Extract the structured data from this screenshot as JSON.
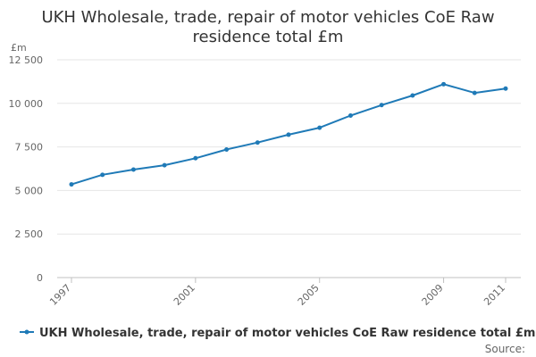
{
  "chart_data": {
    "type": "line",
    "title_lines": [
      "UKH Wholesale, trade, repair of motor vehicles CoE Raw",
      "residence total £m"
    ],
    "unit_label": "£m",
    "x": [
      1997,
      1998,
      1999,
      2000,
      2001,
      2002,
      2003,
      2004,
      2005,
      2006,
      2007,
      2008,
      2009,
      2010,
      2011
    ],
    "x_tick_labels": [
      "1997",
      "2001",
      "2005",
      "2009",
      "2011"
    ],
    "y_tick_labels": [
      "0",
      "2 500",
      "5 000",
      "7 500",
      "10 000",
      "12 500"
    ],
    "ylim": [
      0,
      12500
    ],
    "series": [
      {
        "name": "UKH Wholesale, trade, repair of motor vehicles CoE Raw residence total £m",
        "color": "#1f7ab7",
        "values": [
          5350,
          5900,
          6200,
          6450,
          6850,
          7350,
          7750,
          8200,
          8600,
          9300,
          9900,
          10450,
          11100,
          10600,
          10850
        ]
      }
    ],
    "grid": true,
    "legend_position": "bottom"
  },
  "source_label": "Source:"
}
